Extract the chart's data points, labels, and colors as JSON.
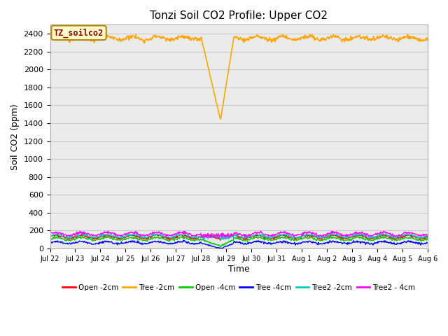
{
  "title": "Tonzi Soil CO2 Profile: Upper CO2",
  "ylabel": "Soil CO2 (ppm)",
  "xlabel": "Time",
  "annotation_text": "TZ_soilco2",
  "annotation_color": "#8B0000",
  "annotation_bg": "#FFFFCC",
  "annotation_border": "#B8860B",
  "ylim": [
    0,
    2500
  ],
  "yticks": [
    0,
    200,
    400,
    600,
    800,
    1000,
    1200,
    1400,
    1600,
    1800,
    2000,
    2200,
    2400
  ],
  "x_labels": [
    "Jul 22",
    "Jul 23",
    "Jul 24",
    "Jul 25",
    "Jul 26",
    "Jul 27",
    "Jul 28",
    "Jul 29",
    "Jul 30",
    "Jul 31",
    "Aug 1",
    "Aug 2",
    "Aug 3",
    "Aug 4",
    "Aug 5",
    "Aug 6"
  ],
  "bg_color": "#EBEBEB",
  "grid_color": "#C8C8C8",
  "series": [
    {
      "label": "Open -2cm",
      "color": "#FF0000",
      "lw": 1.0
    },
    {
      "label": "Tree -2cm",
      "color": "#FFA500",
      "lw": 1.2
    },
    {
      "label": "Open -4cm",
      "color": "#00CC00",
      "lw": 1.0
    },
    {
      "label": "Tree -4cm",
      "color": "#0000FF",
      "lw": 1.0
    },
    {
      "label": "Tree2 -2cm",
      "color": "#00CCCC",
      "lw": 1.0
    },
    {
      "label": "Tree2 - 4cm",
      "color": "#FF00FF",
      "lw": 1.0
    }
  ]
}
